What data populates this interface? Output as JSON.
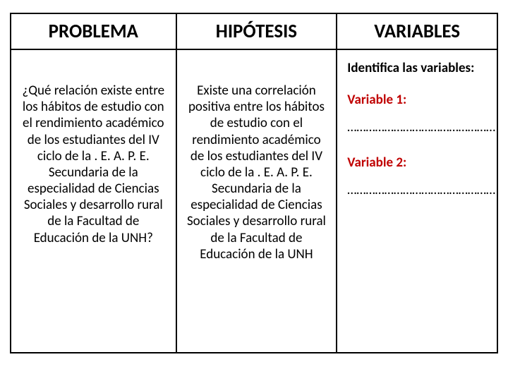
{
  "table": {
    "border_color": "#000000",
    "header_fontsize": 27,
    "body_fontsize": 19,
    "accent_color": "#c00000",
    "background": "#ffffff",
    "columns": {
      "problema": {
        "header": "PROBLEMA",
        "width_pct": 34
      },
      "hipotesis": {
        "header": "HIPÓTESIS",
        "width_pct": 33
      },
      "variables": {
        "header": "VARIABLES",
        "width_pct": 33
      }
    },
    "problema_text": "¿Qué relación existe entre los hábitos de estudio con el rendimiento académico de los estudiantes del IV ciclo de la . E. A. P. E. Secundaria de la especialidad de Ciencias Sociales y desarrollo rural de la Facultad de Educación de la UNH?",
    "hipotesis_text": "Existe una correlación positiva entre los hábitos de estudio con el rendimiento académico de los estudiantes del IV ciclo de la . E. A. P. E. Secundaria de la especialidad de Ciencias Sociales y desarrollo rural de la Facultad de Educación de la UNH",
    "variables_section": {
      "intro": "Identifica las variables:",
      "var1_label": "Variable 1:",
      "var1_line": "…………………………………………",
      "var2_label": "Variable 2:",
      "var2_line": "…………………………………………"
    }
  }
}
